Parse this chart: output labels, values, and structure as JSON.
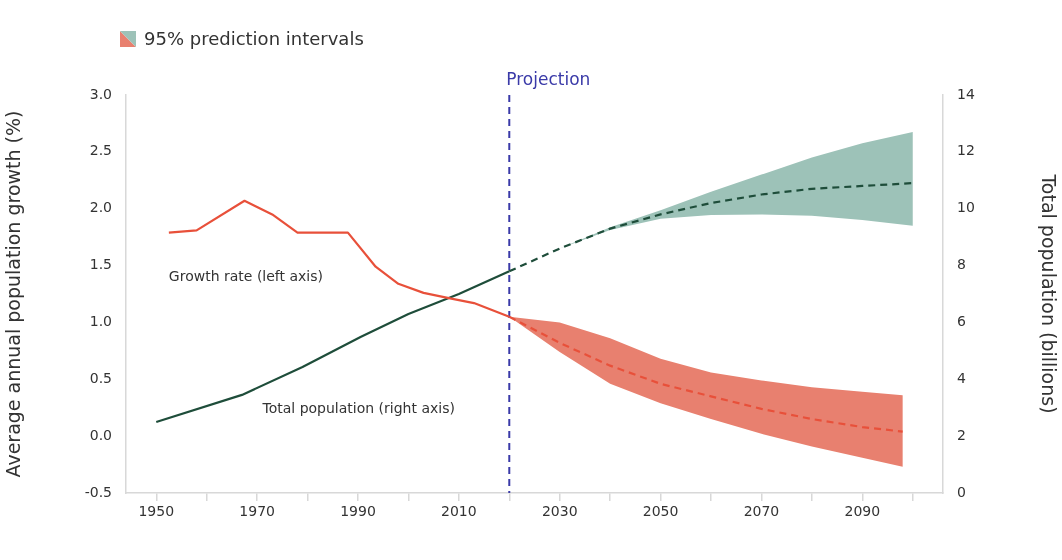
{
  "chart_data": {
    "type": "line",
    "xlabel": null,
    "ylabel": "Average annual population growth (%)",
    "y2label": "Total population (billions)",
    "legend_title": "95% prediction intervals",
    "legend": "top left",
    "xlim": [
      1944,
      2106
    ],
    "xticks": [
      1950,
      {
        "value": 1960,
        "label": null
      },
      1970,
      {
        "value": 1980,
        "label": null
      },
      1990,
      {
        "value": 2000,
        "label": null
      },
      2010,
      {
        "value": 2020,
        "label": null
      },
      2030,
      {
        "value": 2040,
        "label": null
      },
      2050,
      {
        "value": 2060,
        "label": null
      },
      2070,
      {
        "value": 2080,
        "label": null
      },
      2090,
      {
        "value": 2100,
        "label": null
      }
    ],
    "ylim": [
      -0.5,
      3.0
    ],
    "yticks": [
      {
        "value": -0.5,
        "label": "-0.5"
      },
      {
        "value": 0,
        "label": "0.0"
      },
      {
        "value": 0.5,
        "label": "0.5"
      },
      {
        "value": 1,
        "label": "1.0"
      },
      {
        "value": 1.5,
        "label": "1.5"
      },
      {
        "value": 2,
        "label": "2.0"
      },
      {
        "value": 2.5,
        "label": "2.5"
      },
      {
        "value": 3,
        "label": "3.0"
      }
    ],
    "y2lim": [
      0,
      14
    ],
    "y2ticks": [
      0,
      2,
      4,
      6,
      8,
      10,
      12,
      14
    ],
    "grid": false,
    "series": [
      {
        "name": "Growth rate (left axis)",
        "color": "#e8503a",
        "line_style": "solid",
        "axis": "y",
        "x": [
          1952.5,
          1958,
          1967.5,
          1973,
          1978,
          1988,
          1993.5,
          1998,
          2003,
          2008.5,
          2013,
          2020
        ],
        "values": [
          1.79,
          1.81,
          2.07,
          1.95,
          1.79,
          1.79,
          1.49,
          1.34,
          1.26,
          1.21,
          1.17,
          1.05
        ]
      },
      {
        "color": "#e8503a",
        "line_style": "dashed",
        "axis": "y",
        "x": [
          2020,
          2030,
          2040,
          2050,
          2060,
          2070,
          2080,
          2090,
          2098
        ],
        "values": [
          1.05,
          0.82,
          0.62,
          0.46,
          0.35,
          0.24,
          0.15,
          0.08,
          0.04
        ],
        "lower": [
          1.05,
          0.74,
          0.46,
          0.29,
          0.15,
          0.02,
          -0.09,
          -0.19,
          -0.27
        ],
        "upper": [
          1.05,
          1.0,
          0.86,
          0.68,
          0.56,
          0.49,
          0.43,
          0.39,
          0.36
        ]
      },
      {
        "name": "Total population (right axis)",
        "color": "#1e4d3a",
        "line_style": "solid",
        "axis": "y2",
        "x": [
          1950,
          1967,
          1979,
          1990.5,
          2000,
          2010,
          2020
        ],
        "values": [
          2.5,
          3.45,
          4.43,
          5.49,
          6.3,
          7.0,
          7.8
        ]
      },
      {
        "color": "#1e4d3a",
        "line_style": "dashed",
        "axis": "y2",
        "x": [
          2020,
          2030,
          2040,
          2050,
          2060,
          2070,
          2080,
          2090,
          2100
        ],
        "values": [
          7.8,
          8.6,
          9.3,
          9.8,
          10.2,
          10.5,
          10.7,
          10.8,
          10.9
        ],
        "lower": [
          7.8,
          8.6,
          9.25,
          9.65,
          9.78,
          9.8,
          9.75,
          9.6,
          9.4
        ],
        "upper": [
          7.8,
          8.6,
          9.35,
          9.95,
          10.6,
          11.2,
          11.8,
          12.3,
          12.7
        ]
      }
    ],
    "ref_lines": [
      {
        "axis": "x",
        "value": 2020,
        "label": "Projection",
        "color": "#3a3aa8",
        "line_style": "dashed"
      }
    ]
  }
}
